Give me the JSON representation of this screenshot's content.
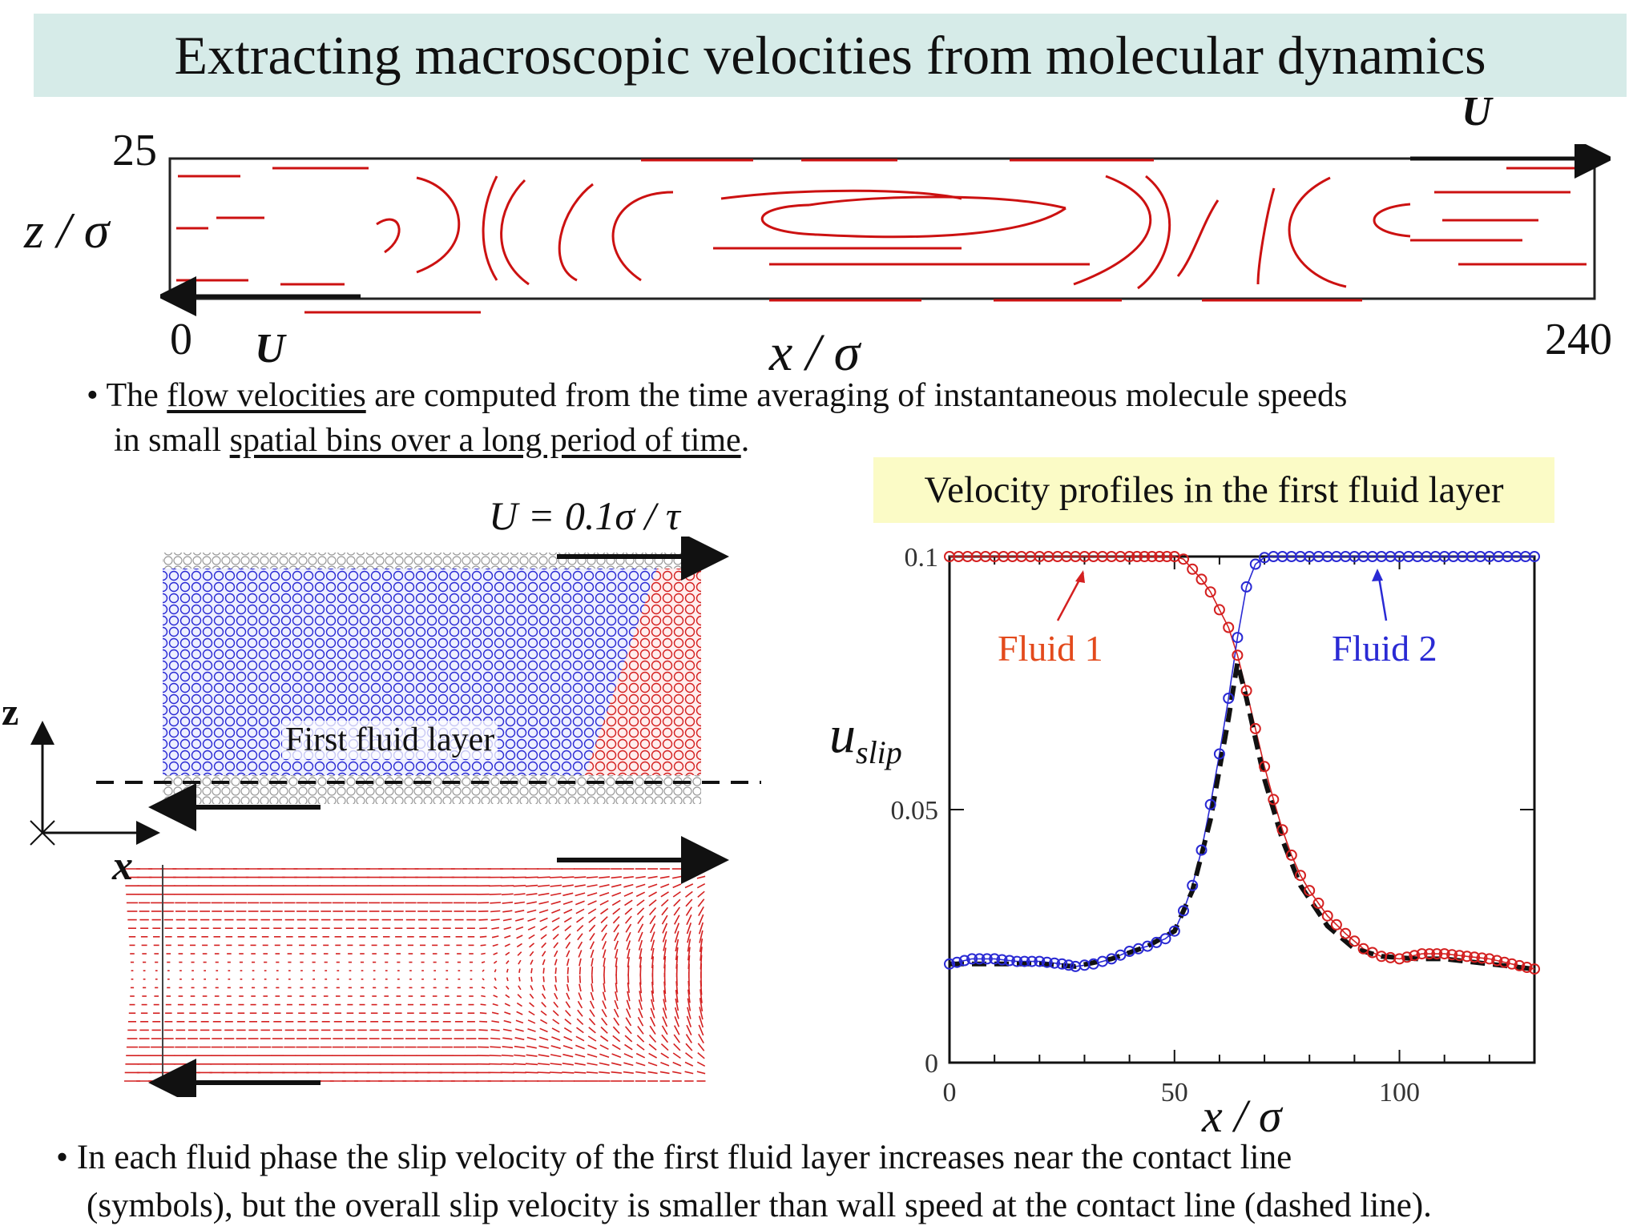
{
  "title": "Extracting macroscopic velocities from molecular dynamics",
  "streamline_panel": {
    "z_axis_label": "z / σ",
    "x_axis_label": "x / σ",
    "z_max": "25",
    "x_min": "0",
    "x_max": "240",
    "top_wall_label": "U",
    "bottom_wall_label": "U",
    "line_color": "#cc1111"
  },
  "bullet1": {
    "mark": "•",
    "part1": "The ",
    "link1": "flow velocities",
    "part2": " are computed from the time averaging of instantaneous molecule speeds",
    "part3": "in small ",
    "link2": "spatial bins over a long period of time",
    "part4": "."
  },
  "md_panel": {
    "wall_speed_label": "U = 0.1σ / τ",
    "layer_label": "First fluid layer",
    "axis_z": "z",
    "axis_x": "x",
    "fluid1_color": "#d42020",
    "fluid2_color": "#2a2ad4",
    "wall_color": "#9a9a9a"
  },
  "bullet2": {
    "mark": "•",
    "line1": "In each fluid phase the slip velocity of the first fluid layer increases near the contact line",
    "line2": "(symbols), but the overall slip velocity is smaller than wall speed at the contact line (dashed line)."
  },
  "chart_data": {
    "type": "line",
    "title": "Velocity profiles in the first fluid layer",
    "xlabel": "x / σ",
    "ylabel": "u",
    "ylabel_subscript": "slip",
    "xlim": [
      0,
      130
    ],
    "ylim": [
      0,
      0.1
    ],
    "x_ticks": [
      "0",
      "50",
      "100"
    ],
    "y_ticks": [
      "0",
      "0.05",
      "0.1"
    ],
    "annotations": [
      "Fluid 1",
      "Fluid 2"
    ],
    "series": [
      {
        "name": "Fluid 1",
        "color": "#d42020",
        "style": "circles",
        "x": [
          0,
          10,
          20,
          30,
          40,
          45,
          50,
          52,
          54,
          56,
          58,
          60,
          62,
          64,
          66,
          68,
          70,
          72,
          74,
          76,
          78,
          80,
          84,
          88,
          92,
          96,
          100,
          105,
          110,
          115,
          120,
          125,
          130
        ],
        "y": [
          0.1,
          0.1,
          0.1,
          0.1,
          0.1,
          0.1,
          0.1,
          0.0995,
          0.0975,
          0.0955,
          0.093,
          0.0895,
          0.086,
          0.0805,
          0.0735,
          0.066,
          0.0585,
          0.052,
          0.046,
          0.041,
          0.037,
          0.034,
          0.029,
          0.0255,
          0.0225,
          0.021,
          0.0205,
          0.0215,
          0.0215,
          0.021,
          0.0205,
          0.0195,
          0.0185
        ]
      },
      {
        "name": "Fluid 2",
        "color": "#2a2ad4",
        "style": "circles",
        "x": [
          0,
          5,
          10,
          15,
          20,
          25,
          28,
          32,
          36,
          40,
          44,
          48,
          50,
          52,
          54,
          56,
          58,
          60,
          62,
          64,
          66,
          68,
          70,
          72,
          80,
          90,
          100,
          110,
          120,
          130
        ],
        "y": [
          0.0195,
          0.0205,
          0.0205,
          0.02,
          0.02,
          0.0195,
          0.019,
          0.0195,
          0.0205,
          0.022,
          0.023,
          0.0245,
          0.026,
          0.03,
          0.035,
          0.042,
          0.051,
          0.061,
          0.072,
          0.084,
          0.094,
          0.0985,
          0.0998,
          0.1,
          0.1,
          0.1,
          0.1,
          0.1,
          0.1,
          0.1
        ]
      },
      {
        "name": "overall",
        "color": "#111111",
        "style": "dashed",
        "x": [
          0,
          10,
          20,
          28,
          36,
          44,
          50,
          54,
          58,
          62,
          64,
          66,
          68,
          70,
          74,
          78,
          84,
          90,
          96,
          104,
          110,
          120,
          130
        ],
        "y": [
          0.0195,
          0.0195,
          0.0195,
          0.019,
          0.0205,
          0.023,
          0.026,
          0.034,
          0.048,
          0.068,
          0.079,
          0.072,
          0.064,
          0.056,
          0.044,
          0.035,
          0.027,
          0.0225,
          0.021,
          0.0205,
          0.0205,
          0.0195,
          0.0185
        ]
      }
    ]
  }
}
